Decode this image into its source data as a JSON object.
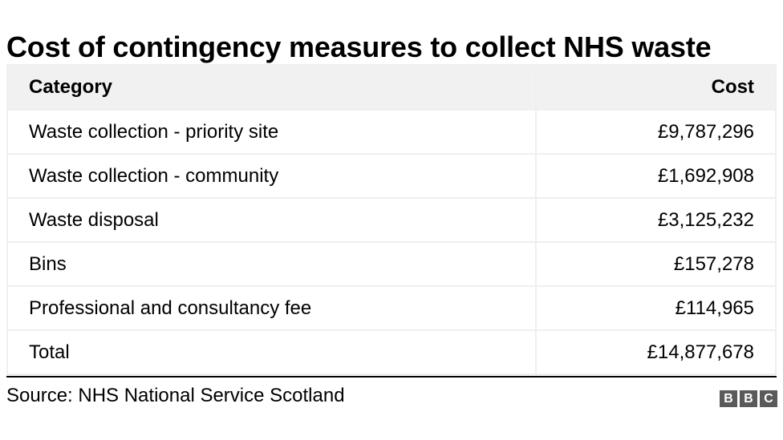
{
  "title": "Cost of contingency measures to collect NHS waste",
  "table": {
    "headers": [
      "Category",
      "Cost"
    ],
    "rows": [
      {
        "category": "Waste collection - priority site",
        "cost": "£9,787,296"
      },
      {
        "category": "Waste collection - community",
        "cost": "£1,692,908"
      },
      {
        "category": "Waste disposal",
        "cost": "£3,125,232"
      },
      {
        "category": "Bins",
        "cost": "£157,278"
      },
      {
        "category": "Professional and consultancy fee",
        "cost": "£114,965"
      },
      {
        "category": "Total",
        "cost": "£14,877,678"
      }
    ]
  },
  "source": "Source: NHS National Service Scotland",
  "logo": [
    "B",
    "B",
    "C"
  ],
  "colors": {
    "header_bg": "#f1f1f1",
    "border": "#efefef",
    "logo_bg": "#5a5a5a"
  },
  "chart_data": {
    "type": "table",
    "title": "Cost of contingency measures to collect NHS waste",
    "columns": [
      "Category",
      "Cost"
    ],
    "categories": [
      "Waste collection - priority site",
      "Waste collection - community",
      "Waste disposal",
      "Bins",
      "Professional and consultancy fee",
      "Total"
    ],
    "values": [
      9787296,
      1692908,
      3125232,
      157278,
      114965,
      14877678
    ],
    "unit": "GBP",
    "source": "NHS National Service Scotland"
  }
}
